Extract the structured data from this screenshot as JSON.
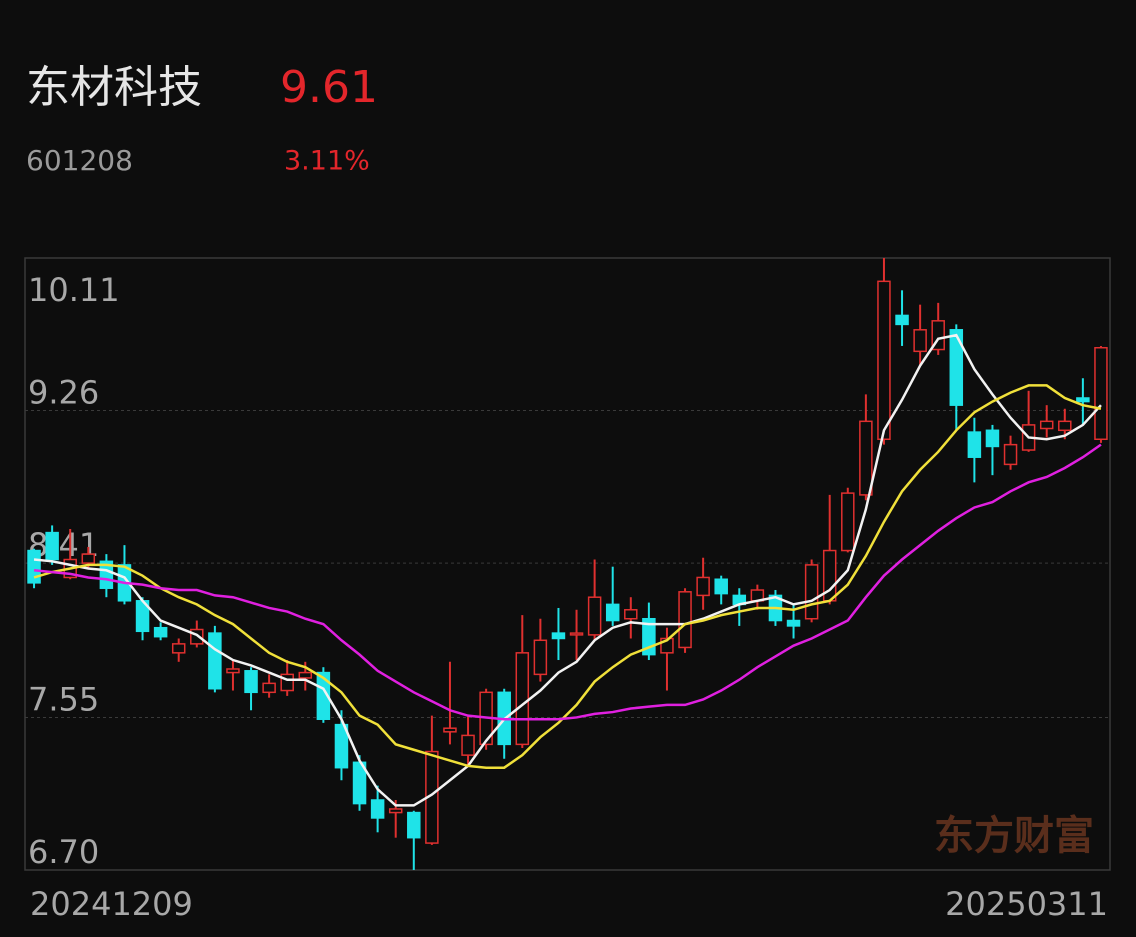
{
  "header": {
    "name": "东材科技",
    "price": "9.61",
    "code": "601208",
    "change": "3.11%"
  },
  "watermark": "东方财富",
  "chart_data": {
    "type": "candlestick",
    "categories": [
      "20241209",
      null,
      null,
      null,
      null,
      null,
      null,
      null,
      null,
      null,
      null,
      null,
      null,
      null,
      null,
      null,
      null,
      null,
      null,
      null,
      null,
      null,
      null,
      null,
      null,
      null,
      null,
      null,
      null,
      null,
      null,
      null,
      null,
      null,
      null,
      null,
      null,
      null,
      null,
      null,
      null,
      null,
      null,
      null,
      null,
      null,
      null,
      null,
      null,
      null,
      null,
      null,
      null,
      null,
      null,
      null,
      null,
      null,
      null,
      "20250311"
    ],
    "open": [
      8.48,
      8.58,
      8.33,
      8.41,
      8.42,
      8.4,
      8.2,
      8.05,
      7.91,
      7.96,
      8.02,
      7.8,
      7.81,
      7.69,
      7.7,
      7.77,
      7.8,
      7.51,
      7.3,
      7.09,
      7.02,
      7.02,
      6.85,
      7.47,
      7.34,
      7.4,
      7.69,
      7.4,
      7.79,
      8.02,
      8.01,
      8.01,
      8.18,
      8.1,
      8.1,
      7.91,
      7.94,
      8.23,
      8.32,
      8.23,
      8.2,
      8.23,
      8.09,
      8.1,
      8.2,
      8.48,
      8.79,
      9.1,
      9.79,
      9.59,
      9.6,
      9.71,
      9.14,
      9.15,
      8.96,
      9.04,
      9.16,
      9.15,
      9.33,
      9.1
    ],
    "high": [
      8.49,
      8.62,
      8.6,
      8.5,
      8.46,
      8.51,
      8.22,
      8.08,
      7.99,
      8.09,
      8.06,
      7.87,
      7.83,
      7.79,
      7.87,
      7.86,
      7.83,
      7.59,
      7.34,
      7.17,
      7.09,
      7.03,
      7.56,
      7.86,
      7.56,
      7.71,
      7.71,
      8.12,
      8.1,
      8.16,
      8.15,
      8.43,
      8.39,
      8.22,
      8.19,
      8.05,
      8.27,
      8.44,
      8.34,
      8.27,
      8.29,
      8.26,
      8.18,
      8.43,
      8.79,
      8.83,
      9.35,
      10.11,
      9.93,
      9.85,
      9.86,
      9.74,
      9.22,
      9.18,
      9.12,
      9.37,
      9.29,
      9.27,
      9.44,
      9.62
    ],
    "low": [
      8.27,
      8.4,
      8.32,
      8.38,
      8.22,
      8.18,
      7.98,
      7.98,
      7.86,
      7.94,
      7.69,
      7.7,
      7.59,
      7.66,
      7.67,
      7.7,
      7.52,
      7.2,
      7.03,
      6.91,
      6.88,
      6.7,
      6.84,
      7.4,
      7.28,
      7.37,
      7.32,
      7.38,
      7.75,
      7.87,
      7.87,
      7.98,
      8.06,
      7.99,
      7.87,
      7.7,
      7.91,
      8.15,
      8.18,
      8.06,
      8.15,
      8.06,
      7.99,
      8.08,
      8.18,
      8.47,
      8.76,
      9.07,
      9.62,
      9.51,
      9.57,
      9.15,
      8.86,
      8.9,
      8.93,
      9.03,
      9.11,
      9.1,
      9.18,
      9.08
    ],
    "close": [
      8.3,
      8.43,
      8.43,
      8.46,
      8.27,
      8.2,
      8.03,
      8.0,
      7.96,
      8.04,
      7.71,
      7.82,
      7.69,
      7.74,
      7.79,
      7.8,
      7.54,
      7.27,
      7.07,
      6.99,
      7.04,
      6.88,
      7.36,
      7.49,
      7.45,
      7.69,
      7.4,
      7.91,
      7.98,
      7.99,
      8.02,
      8.22,
      8.09,
      8.15,
      7.9,
      7.99,
      8.25,
      8.33,
      8.24,
      8.18,
      8.26,
      8.09,
      8.06,
      8.4,
      8.48,
      8.8,
      9.2,
      9.98,
      9.74,
      9.71,
      9.76,
      9.29,
      9.0,
      9.06,
      9.07,
      9.18,
      9.2,
      9.2,
      9.31,
      9.61
    ],
    "up_color": "#e0302f",
    "down_color": "#1fe3e8",
    "series": [
      {
        "color": "#f2f2f2",
        "values": [
          8.43,
          8.42,
          8.4,
          8.38,
          8.37,
          8.33,
          8.2,
          8.09,
          8.05,
          8.01,
          7.93,
          7.87,
          7.84,
          7.8,
          7.76,
          7.76,
          7.71,
          7.54,
          7.31,
          7.15,
          7.06,
          7.06,
          7.12,
          7.2,
          7.28,
          7.42,
          7.54,
          7.62,
          7.7,
          7.8,
          7.86,
          7.98,
          8.05,
          8.08,
          8.07,
          8.07,
          8.07,
          8.1,
          8.14,
          8.18,
          8.2,
          8.22,
          8.18,
          8.2,
          8.26,
          8.37,
          8.71,
          9.15,
          9.32,
          9.51,
          9.66,
          9.68,
          9.49,
          9.35,
          9.22,
          9.11,
          9.1,
          9.12,
          9.18,
          9.29
        ]
      },
      {
        "color": "#f0e03a",
        "values": [
          8.33,
          8.36,
          8.38,
          8.4,
          8.4,
          8.39,
          8.34,
          8.27,
          8.22,
          8.18,
          8.12,
          8.07,
          7.99,
          7.91,
          7.86,
          7.83,
          7.77,
          7.69,
          7.56,
          7.51,
          7.4,
          7.37,
          7.34,
          7.31,
          7.28,
          7.27,
          7.27,
          7.34,
          7.44,
          7.52,
          7.62,
          7.75,
          7.83,
          7.9,
          7.94,
          7.98,
          8.07,
          8.09,
          8.12,
          8.14,
          8.16,
          8.16,
          8.15,
          8.18,
          8.2,
          8.29,
          8.45,
          8.64,
          8.81,
          8.93,
          9.03,
          9.15,
          9.25,
          9.31,
          9.36,
          9.4,
          9.4,
          9.33,
          9.29,
          9.27
        ]
      },
      {
        "color": "#e020e0",
        "values": [
          8.37,
          8.36,
          8.35,
          8.33,
          8.32,
          8.3,
          8.29,
          8.27,
          8.26,
          8.26,
          8.23,
          8.22,
          8.19,
          8.16,
          8.14,
          8.1,
          8.07,
          7.98,
          7.9,
          7.81,
          7.75,
          7.69,
          7.64,
          7.59,
          7.56,
          7.55,
          7.54,
          7.54,
          7.54,
          7.54,
          7.55,
          7.57,
          7.58,
          7.6,
          7.61,
          7.62,
          7.62,
          7.65,
          7.7,
          7.76,
          7.83,
          7.89,
          7.95,
          7.99,
          8.04,
          8.09,
          8.22,
          8.34,
          8.43,
          8.51,
          8.59,
          8.66,
          8.72,
          8.75,
          8.81,
          8.86,
          8.89,
          8.94,
          9.0,
          9.07
        ]
      }
    ],
    "ylim": [
      6.7,
      10.11
    ],
    "yticks": [
      10.11,
      9.26,
      8.41,
      7.55,
      {
        "value": 6.7,
        "label": "6.70"
      }
    ],
    "grid": true
  }
}
